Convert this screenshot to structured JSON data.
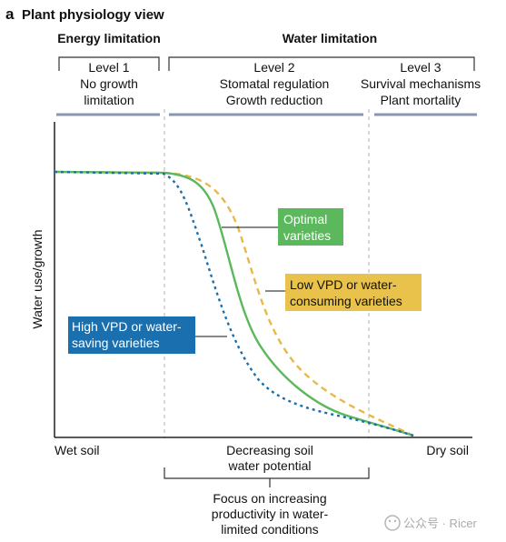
{
  "panel_label": "a",
  "panel_title": "Plant physiology view",
  "header": {
    "energy_limitation": "Energy limitation",
    "water_limitation": "Water limitation"
  },
  "levels": [
    {
      "name": "Level 1",
      "line1": "No growth",
      "line2": "limitation"
    },
    {
      "name": "Level 2",
      "line1": "Stomatal regulation",
      "line2": "Growth reduction"
    },
    {
      "name": "Level 3",
      "line1": "Survival mechanisms",
      "line2": "Plant mortality"
    }
  ],
  "axes": {
    "y_label": "Water use/growth",
    "x_left": "Wet soil",
    "x_middle_line1": "Decreasing soil",
    "x_middle_line2": "water potential",
    "x_right": "Dry soil"
  },
  "callouts": {
    "optimal": {
      "line1": "Optimal",
      "line2": "varieties",
      "color": "#5cb85c"
    },
    "low_vpd": {
      "line1": "Low VPD or water-",
      "line2": "consuming varieties",
      "color": "#e8c24a"
    },
    "high_vpd": {
      "line1": "High VPD or water-",
      "line2": "saving varieties",
      "color": "#1a6fae"
    }
  },
  "focus": {
    "line1": "Focus on increasing",
    "line2": "productivity in water-",
    "line3": "limited conditions"
  },
  "watermark": "公众号 · Ricer",
  "colors": {
    "green": "#5cb85c",
    "yellow": "#e8b84a",
    "blue": "#1a6fae",
    "level_bar": "#8a97ad",
    "dashed_divider": "#b0b0b0"
  }
}
